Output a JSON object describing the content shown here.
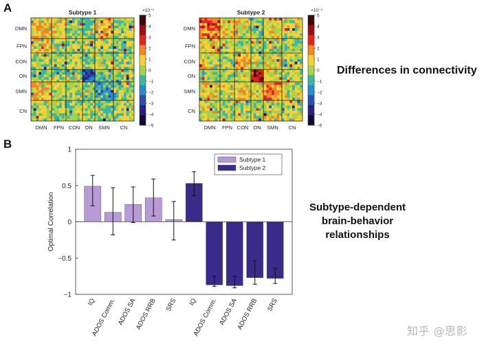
{
  "panel_a": {
    "letter": "A",
    "caption": "Differences in connectivity",
    "heatmaps": [
      {
        "title": "Subtype 1",
        "pattern": "subtype1"
      },
      {
        "title": "Subtype 2",
        "pattern": "subtype2"
      }
    ],
    "networks": [
      "DMN",
      "FPN",
      "CON",
      "ON",
      "SMN",
      "CN"
    ],
    "colorbar": {
      "exponent": "×10⁻³",
      "ticks": [
        "5",
        "4",
        "3",
        "2",
        "1",
        "0",
        "−1",
        "−2",
        "−3",
        "−4",
        "−5"
      ],
      "colors": [
        "#3b0a0a",
        "#9d0f10",
        "#e0261c",
        "#f3862a",
        "#f6d23a",
        "#a9d14a",
        "#3fb6a0",
        "#2b8bd0",
        "#2a4fb0",
        "#28237a",
        "#100c3a"
      ]
    }
  },
  "panel_b": {
    "letter": "B",
    "caption_lines": [
      "Subtype-dependent",
      "brain-behavior",
      "relationships"
    ],
    "watermark": "知乎 @思影",
    "chart_data": {
      "type": "bar",
      "ylabel": "Optimal Correlation",
      "ylim": [
        -1,
        1
      ],
      "yticks": [
        "1",
        "0.5",
        "0",
        "−0.5",
        "−1"
      ],
      "ytick_values": [
        1,
        0.5,
        0,
        -0.5,
        -1
      ],
      "categories": [
        "IQ",
        "ADOS Comm.",
        "ADOS SA",
        "ADOS RRB",
        "SRS",
        "IQ",
        "ADOS Comm.",
        "ADOS SA",
        "ADOS RRB",
        "SRS"
      ],
      "series": [
        {
          "name": "Subtype 1",
          "color": "#b89ad6",
          "values": [
            0.49,
            0.13,
            0.24,
            0.33,
            0.03,
            null,
            null,
            null,
            null,
            null
          ],
          "err_low": [
            0.22,
            -0.18,
            -0.01,
            0.08,
            -0.25,
            null,
            null,
            null,
            null,
            null
          ],
          "err_high": [
            0.64,
            0.47,
            0.48,
            0.59,
            0.28,
            null,
            null,
            null,
            null,
            null
          ]
        },
        {
          "name": "Subtype 2",
          "color": "#3a2a8a",
          "values": [
            null,
            null,
            null,
            null,
            null,
            0.53,
            -0.87,
            -0.88,
            -0.77,
            -0.78
          ],
          "err_low": [
            null,
            null,
            null,
            null,
            null,
            0.36,
            -0.89,
            -0.91,
            -0.86,
            -0.85
          ],
          "err_high": [
            null,
            null,
            null,
            null,
            null,
            0.69,
            -0.75,
            -0.75,
            -0.54,
            -0.64
          ]
        }
      ],
      "legend_placement": "top-right",
      "grid": false
    }
  }
}
